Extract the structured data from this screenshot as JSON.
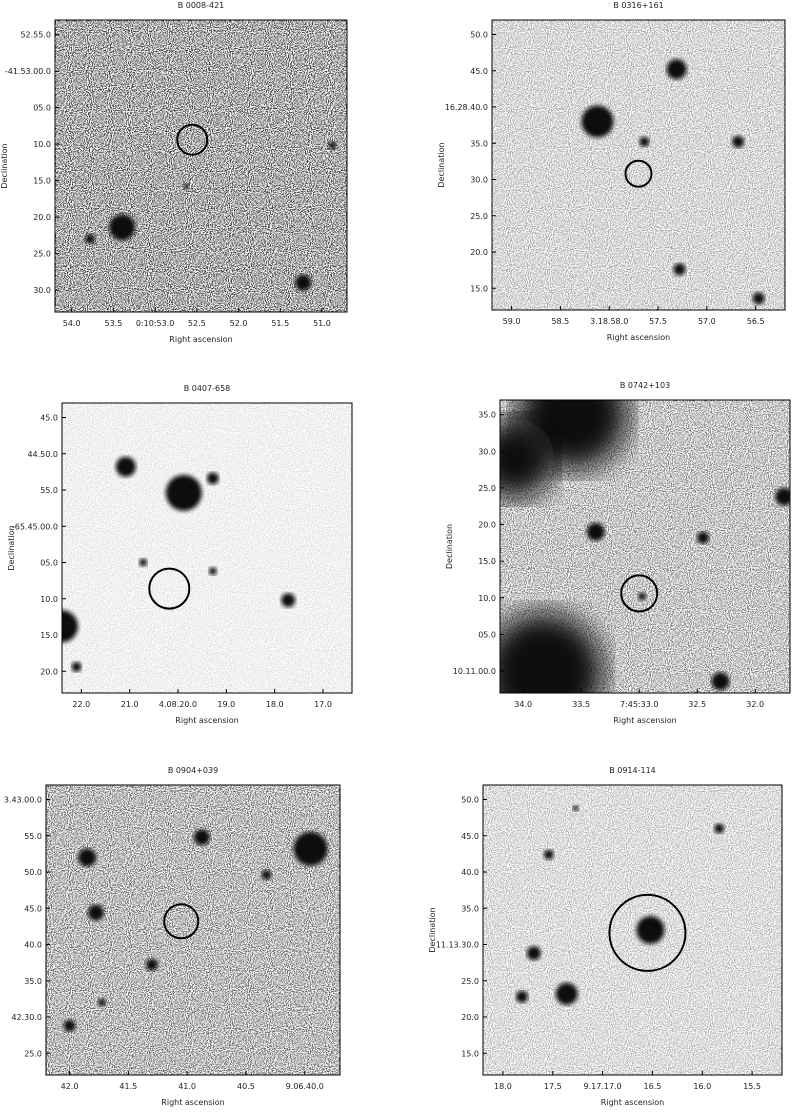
{
  "panels": [
    {
      "title": "B 0008-421",
      "y_label": "Declination",
      "x_label": "Right ascension",
      "y_ticks": [
        "52.55.0",
        "-41.53.00.0",
        "05.0",
        "10.0",
        "15.0",
        "20.0",
        "25.0",
        "30.0"
      ],
      "x_ticks": [
        "54.0",
        "53.5",
        "0:10:53.0",
        "52.5",
        "52.0",
        "51.5",
        "51.0"
      ]
    },
    {
      "title": "B 0316+161",
      "y_label": "Declination",
      "x_label": "Right ascension",
      "y_ticks": [
        "50.0",
        "45.0",
        "16.28.40.0",
        "35.0",
        "30.0",
        "25.0",
        "20.0",
        "15.0"
      ],
      "x_ticks": [
        "59.0",
        "58.5",
        "3.18.58.0",
        "57.5",
        "57.0",
        "56.5"
      ]
    },
    {
      "title": "B 0407-658",
      "y_label": "Declination",
      "x_label": "Right ascension",
      "y_ticks": [
        "45.0",
        "44.50.0",
        "55.0",
        "-65.45.00.0",
        "05.0",
        "10.0",
        "15.0",
        "20.0"
      ],
      "x_ticks": [
        "22.0",
        "21.0",
        "4.08.20.0",
        "19.0",
        "18.0",
        "17.0"
      ]
    },
    {
      "title": "B 0742+103",
      "y_label": "Declination",
      "x_label": "Right ascension",
      "y_ticks": [
        "35.0",
        "30.0",
        "25.0",
        "20.0",
        "15.0",
        "10.0",
        "05.0",
        "10.11.00.0"
      ],
      "x_ticks": [
        "34.0",
        "33.5",
        "7:45:33.0",
        "32.5",
        "32.0"
      ]
    },
    {
      "title": "B 0904+039",
      "y_label": "Declination",
      "x_label": "Right ascension",
      "y_ticks": [
        "3.43.00.0",
        "55.0",
        "50.0",
        "45.0",
        "40.0",
        "35.0",
        "42.30.0",
        "25.0"
      ],
      "x_ticks": [
        "42.0",
        "41.5",
        "41.0",
        "40.5",
        "9.06.40.0"
      ]
    },
    {
      "title": "B 0914-114",
      "y_label": "Declination",
      "x_label": "Right ascension",
      "y_ticks": [
        "50.0",
        "45.0",
        "40.0",
        "35.0",
        "11.13.30.0",
        "25.0",
        "20.0",
        "15.0"
      ],
      "x_ticks": [
        "18.0",
        "17.5",
        "9.17.17.0",
        "16.5",
        "16.0",
        "15.5"
      ]
    }
  ]
}
